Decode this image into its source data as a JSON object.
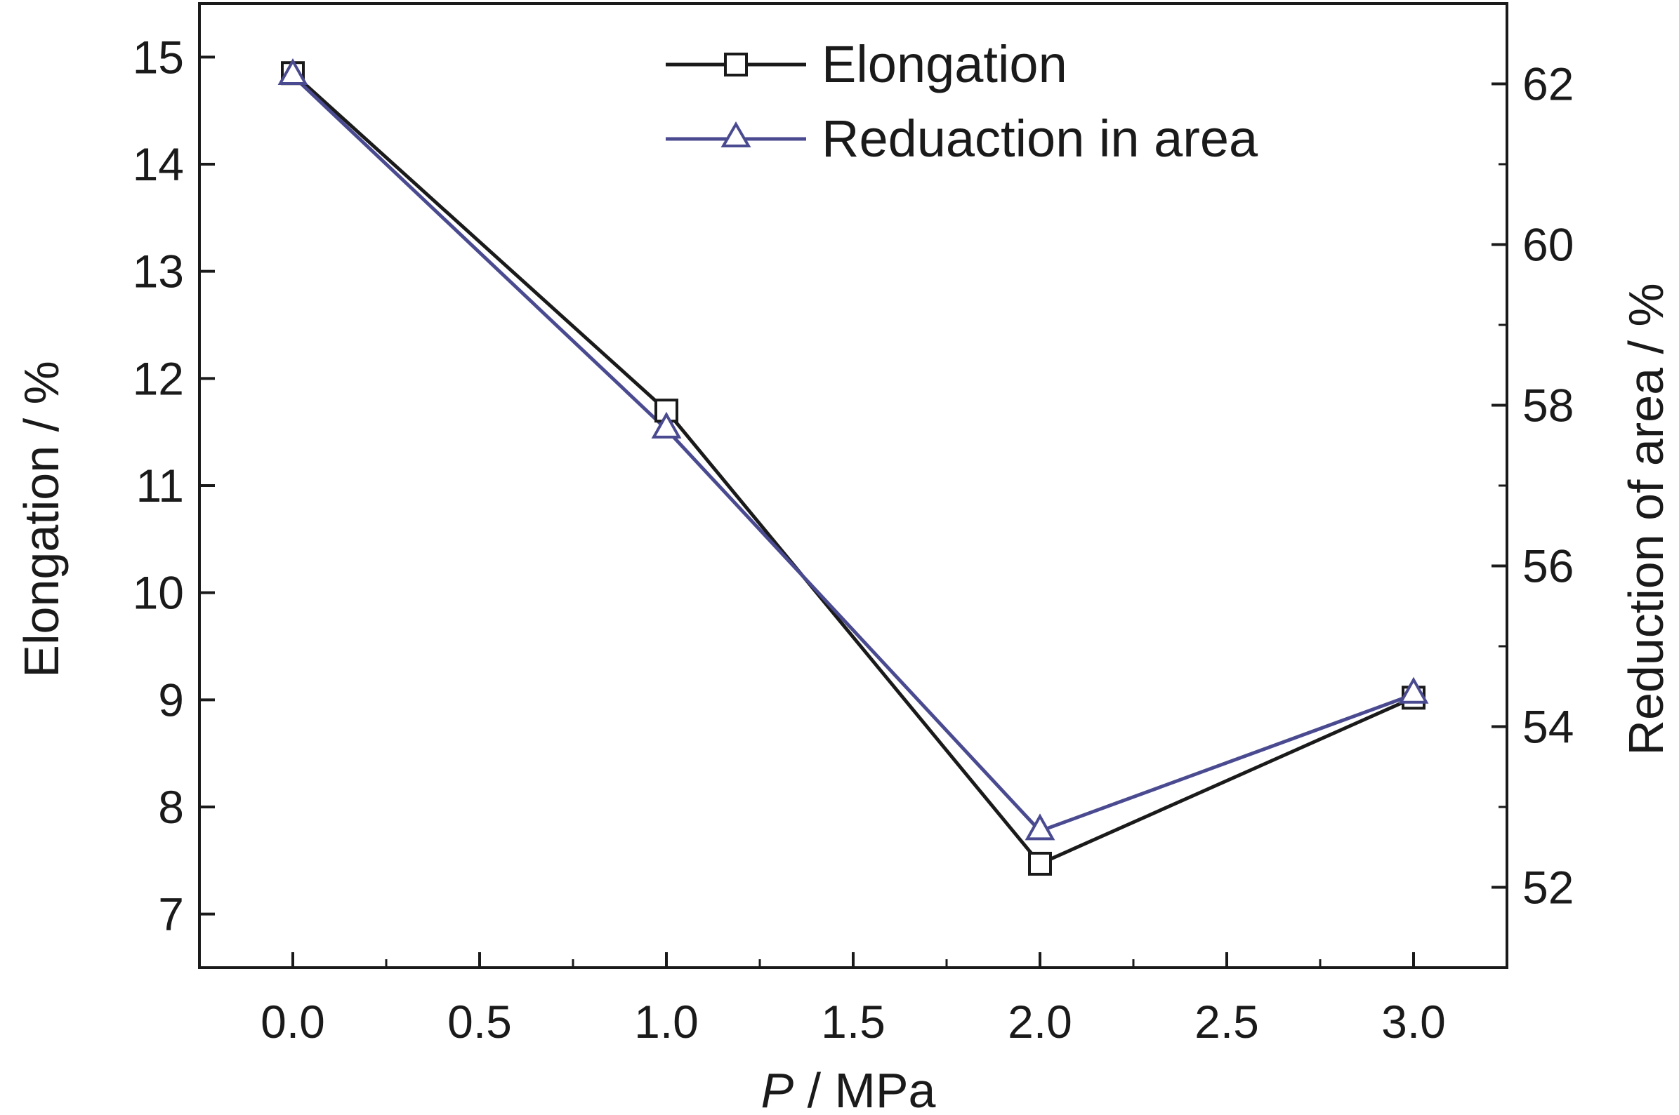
{
  "chart_data": {
    "type": "line",
    "x": [
      0.0,
      1.0,
      2.0,
      3.0
    ],
    "xlabel_var": "P",
    "xlabel_unit": " / MPa",
    "ylabel": "Elongation / %",
    "y2label": "Reduction of area / %",
    "xlim": [
      -0.25,
      3.25
    ],
    "ylim": [
      6.5,
      15.5
    ],
    "y2lim": [
      51.0,
      63.0
    ],
    "x_ticks": [
      "0.0",
      "0.5",
      "1.0",
      "1.5",
      "2.0",
      "2.5",
      "3.0"
    ],
    "x_tick_values": [
      0.0,
      0.5,
      1.0,
      1.5,
      2.0,
      2.5,
      3.0
    ],
    "y_ticks": [
      "7",
      "8",
      "9",
      "10",
      "11",
      "12",
      "13",
      "14",
      "15"
    ],
    "y_tick_values": [
      7,
      8,
      9,
      10,
      11,
      12,
      13,
      14,
      15
    ],
    "y2_ticks": [
      "52",
      "54",
      "56",
      "58",
      "60",
      "62"
    ],
    "y2_tick_values": [
      52,
      54,
      56,
      58,
      60,
      62
    ],
    "legend_position": "top-center",
    "grid": false,
    "series": [
      {
        "name": "Elongation",
        "axis": "left",
        "marker": "square",
        "color": "#1a1a1a",
        "values": [
          14.85,
          11.7,
          7.47,
          9.02
        ]
      },
      {
        "name": "Reduaction in area",
        "axis": "right",
        "marker": "triangle",
        "color": "#4a4a90",
        "values": [
          62.1,
          57.7,
          52.7,
          54.4
        ]
      }
    ]
  }
}
